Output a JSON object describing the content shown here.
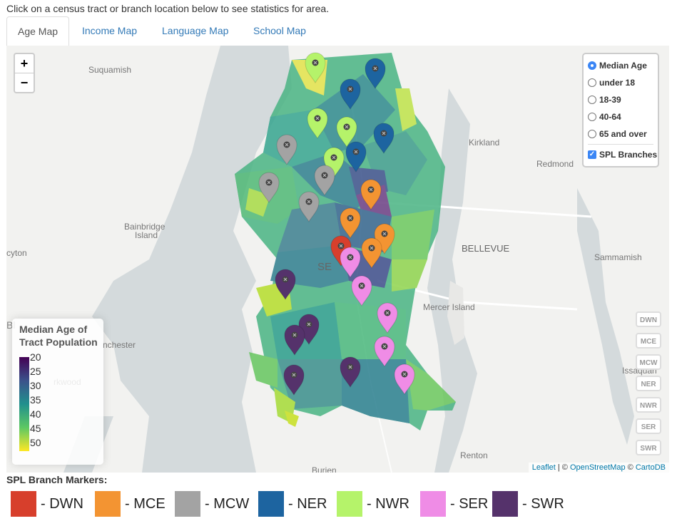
{
  "instruction": "Click on a census tract or branch location below to see statistics for area.",
  "tabs": [
    {
      "label": "Age Map",
      "active": true
    },
    {
      "label": "Income Map",
      "active": false
    },
    {
      "label": "Language Map",
      "active": false
    },
    {
      "label": "School Map",
      "active": false
    }
  ],
  "zoom": {
    "in": "+",
    "out": "−"
  },
  "map_labels": {
    "suquamish": "Suquamish",
    "kirkland": "Kirkland",
    "redmond": "Redmond",
    "bainbridge": "Bainbridge\nIsland",
    "bellevue": "BELLEVUE",
    "sammamish": "Sammamish",
    "mercer": "Mercer Island",
    "issaquah": "Issaquah",
    "renton": "Renton",
    "burien": "Burien",
    "manchester": "nchester",
    "arkwood": "rkwood",
    "cyton": "cyton",
    "seattle": "SE",
    "bl": "Bl"
  },
  "layers": {
    "options": [
      {
        "label": "Median Age",
        "selected": true
      },
      {
        "label": "under 18",
        "selected": false
      },
      {
        "label": "18-39",
        "selected": false
      },
      {
        "label": "40-64",
        "selected": false
      },
      {
        "label": "65 and over",
        "selected": false
      }
    ],
    "overlay": {
      "label": "SPL Branches",
      "checked": true
    }
  },
  "legend": {
    "title": "Median Age of\nTract Population",
    "ticks": [
      "20",
      "25",
      "30",
      "35",
      "40",
      "45",
      "50"
    ]
  },
  "branch_buttons": [
    "DWN",
    "MCE",
    "MCW",
    "NER",
    "NWR",
    "SER",
    "SWR"
  ],
  "attribution": {
    "leaflet": "Leaflet",
    "sep1": " | © ",
    "osm": "OpenStreetMap",
    "sep2": " © ",
    "carto": "CartoDB"
  },
  "branch_markers_title": "SPL Branch Markers:",
  "branch_markers": [
    {
      "code": "DWN",
      "label": "- DWN",
      "color": "#d73f2c"
    },
    {
      "code": "MCE",
      "label": "- MCE",
      "color": "#f39432"
    },
    {
      "code": "MCW",
      "label": "- MCW",
      "color": "#a3a3a3"
    },
    {
      "code": "NER",
      "label": "- NER",
      "color": "#1d64a0"
    },
    {
      "code": "NWR",
      "label": "- NWR",
      "color": "#b5f36a"
    },
    {
      "code": "SER",
      "label": "- SER",
      "color": "#ef8ce6"
    },
    {
      "code": "SWR",
      "label": "- SWR",
      "color": "#55326b"
    }
  ]
}
